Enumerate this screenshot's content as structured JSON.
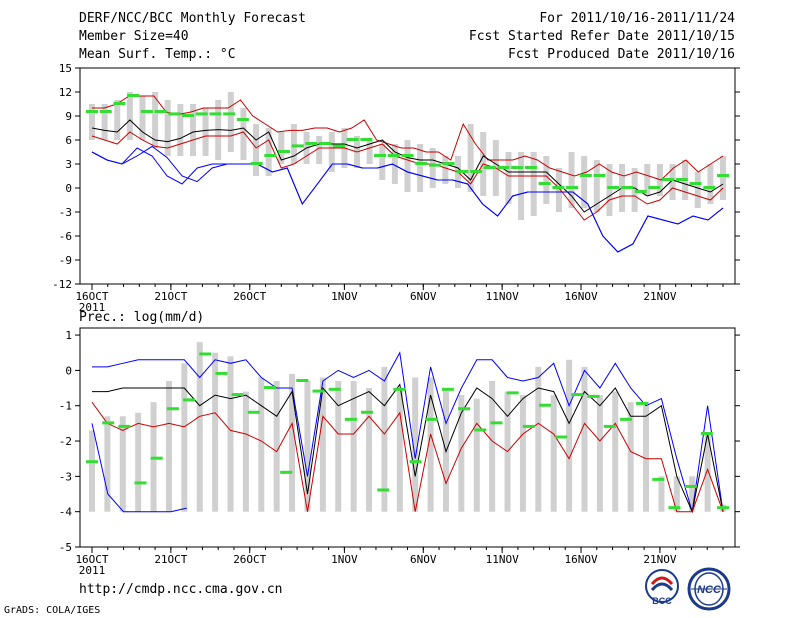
{
  "header": {
    "title": "DERF/NCC/BCC Monthly Forecast",
    "member_size": "Member Size=40",
    "variable": "Mean Surf. Temp.: °C",
    "period": "For 2011/10/16-2011/11/24",
    "refer_date": "Fcst Started Refer Date 2011/10/15",
    "produced_date": "Fcst Produced Date 2011/10/16"
  },
  "footer": {
    "url": "http://cmdp.ncc.cma.gov.cn",
    "credit": "GrADS: COLA/IGES",
    "logo_bcc_text": "BCC",
    "logo_ncc_text": "NCC"
  },
  "colors": {
    "box": "#d0d0d0",
    "ensemble_mean": "#000000",
    "bound_outer": "#0000ff",
    "bound_inner": "#cc0000",
    "observed": "#33dd33"
  },
  "chart_data": [
    {
      "type": "line",
      "title": "Mean Surf. Temp.: °C",
      "xlabel": "",
      "ylabel": "°C",
      "ylim": [
        -12,
        15
      ],
      "yticks": [
        -12,
        -9,
        -6,
        -3,
        0,
        3,
        6,
        9,
        12,
        15
      ],
      "x_tick_labels": [
        "16OCT",
        "21OCT",
        "26OCT",
        "1NOV",
        "6NOV",
        "11NOV",
        "16NOV",
        "21NOV"
      ],
      "x_tick_days": [
        0,
        5,
        10,
        16,
        21,
        26,
        31,
        36
      ],
      "year_label": "2011",
      "days": 40,
      "series": [
        {
          "name": "max",
          "values": [
            4.5,
            3.5,
            3,
            4,
            5.2,
            3.8,
            1.5,
            0.8,
            2.5,
            3,
            3,
            3,
            2,
            2.5,
            -2,
            0.5,
            3,
            3,
            2.5,
            2.5,
            3,
            2,
            1.5,
            1,
            1,
            0.5,
            -2,
            -3.5,
            -1,
            -0.5,
            -0.5,
            -0.5,
            -0.5,
            -2,
            -6,
            -8,
            -7,
            -3.5,
            -4,
            -4.5,
            -3.5,
            -4,
            -2.5
          ]
        },
        {
          "name": "upper",
          "values": [
            10,
            10,
            10.5,
            11.5,
            11.5,
            11.5,
            9.5,
            9.2,
            9.5,
            10,
            10,
            10,
            11,
            9,
            8,
            7,
            7.2,
            7.2,
            7.5,
            7.5,
            7,
            7.5,
            8.5,
            6,
            5.5,
            5,
            5,
            4.5,
            4.5,
            3.5,
            8,
            5.5,
            3.5,
            3.5,
            3.5,
            4,
            3.5,
            2.5,
            2,
            1.5,
            2,
            3,
            2,
            1.5,
            2,
            1.5,
            1,
            2.5,
            3.5,
            2,
            3,
            4
          ]
        },
        {
          "name": "ensemble",
          "values": [
            7.5,
            7.2,
            7,
            8.5,
            7,
            6,
            5.8,
            6.2,
            7,
            7.2,
            7.3,
            7.2,
            7.5,
            6,
            7,
            3.5,
            4,
            5,
            5.5,
            5.5,
            5.5,
            5,
            5.5,
            6,
            4.5,
            3.8,
            3.5,
            3.5,
            3,
            2.5,
            1,
            4,
            3,
            2,
            2,
            2,
            2,
            0.5,
            -1,
            -3,
            -2,
            -1,
            0,
            0,
            -1,
            -0.5,
            1,
            0.5,
            0,
            -0.5,
            0.5
          ]
        },
        {
          "name": "lower",
          "values": [
            6.5,
            6,
            5.5,
            7,
            6,
            5.2,
            5,
            5.5,
            6,
            6.5,
            6.5,
            6.5,
            7,
            5,
            6,
            2.5,
            3,
            4,
            5,
            5,
            5,
            4.5,
            5,
            5.5,
            4,
            3.5,
            3,
            3,
            2.5,
            2,
            0.5,
            3,
            2.5,
            1.5,
            1.5,
            1.5,
            1.5,
            0,
            -2,
            -4,
            -3,
            -1.5,
            -1,
            -1,
            -2,
            -1.5,
            0,
            -0.5,
            -1,
            -1.5,
            0
          ]
        },
        {
          "name": "min",
          "values": [
            4.5,
            3.5,
            3,
            5,
            4,
            1.5,
            0.5,
            2.5,
            3,
            3,
            3,
            3,
            2,
            2.5,
            -2,
            0.5,
            3,
            3,
            2.5,
            2.5,
            3,
            2,
            1.5,
            1,
            1,
            0.5,
            -2,
            -3.5,
            -1,
            -0.5,
            -0.5,
            -0.5,
            -0.5,
            -2,
            -6,
            -8,
            -7,
            -3.5,
            -4,
            -4.5,
            -3.5,
            -4,
            -2.5
          ]
        },
        {
          "name": "observed",
          "values": [
            9.5,
            9.5,
            10.5,
            11.5,
            9.5,
            9.5,
            9.2,
            9,
            9.2,
            9.2,
            9.2,
            8.5,
            3,
            4,
            4.5,
            5.2,
            5.5,
            5.5,
            5.2,
            6,
            6,
            4,
            4,
            4,
            3,
            2.8,
            3,
            2,
            2,
            2.5,
            2.5,
            2.5,
            2.5,
            0.5,
            0,
            0,
            1.5,
            1.5,
            0,
            0,
            -0.5,
            0,
            1,
            1,
            0.5,
            0,
            1.5
          ]
        },
        {
          "name": "box_top",
          "values": [
            10.5,
            10.5,
            11,
            12,
            11.5,
            12,
            11,
            10.5,
            10.5,
            10,
            11,
            12,
            10,
            8,
            7.5,
            7,
            8,
            7,
            6.5,
            7,
            7.5,
            6.5,
            6,
            5.5,
            5.5,
            6,
            5.5,
            5,
            4,
            4,
            8,
            7,
            6,
            4.5,
            4.5,
            4.5,
            4,
            2.5,
            4.5,
            4,
            3.5,
            3,
            3,
            2.5,
            3,
            3,
            3,
            3.5,
            2,
            3,
            4
          ]
        },
        {
          "name": "box_bottom",
          "values": [
            6,
            6,
            6,
            6,
            6,
            5,
            4,
            4,
            4,
            4,
            3.5,
            4.5,
            3.5,
            1.5,
            1.5,
            3,
            3,
            3,
            3,
            2,
            2.5,
            2.5,
            3,
            1,
            0.5,
            -0.5,
            -0.5,
            0,
            0.5,
            0,
            -0.5,
            -1,
            -1,
            -2,
            -4,
            -3.5,
            -2,
            -3,
            -2.5,
            -2.5,
            -3,
            -3.5,
            -3,
            -3,
            -1,
            -1,
            -1.5,
            -1.5,
            -2.5,
            -2,
            -1.5
          ]
        }
      ]
    },
    {
      "type": "line",
      "title": "Prec.: log(mm/d)",
      "xlabel": "",
      "ylabel": "log(mm/d)",
      "ylim": [
        -5,
        1.2
      ],
      "yticks": [
        -5,
        -4,
        -3,
        -2,
        -1,
        0,
        1
      ],
      "x_tick_labels": [
        "16OCT",
        "21OCT",
        "26OCT",
        "1NOV",
        "6NOV",
        "11NOV",
        "16NOV",
        "21NOV"
      ],
      "x_tick_days": [
        0,
        5,
        10,
        16,
        21,
        26,
        31,
        36
      ],
      "year_label": "2011",
      "days": 40,
      "series": [
        {
          "name": "upper",
          "values": [
            0.1,
            0.1,
            0.2,
            0.3,
            0.3,
            0.3,
            0.3,
            -0.2,
            0.3,
            0.2,
            0.3,
            -0.2,
            -0.5,
            -0.5,
            -3,
            -0.3,
            0,
            -0.2,
            0,
            -0.3,
            0.5,
            -2.5,
            0.1,
            -1.5,
            -0.5,
            0.3,
            0.3,
            -0.2,
            -0.3,
            -0.2,
            0.2,
            -1,
            0,
            -0.5,
            0.2,
            -0.5,
            -1,
            -0.8,
            -2.5,
            -4,
            -1,
            -4
          ]
        },
        {
          "name": "ensemble",
          "values": [
            -0.6,
            -0.6,
            -0.5,
            -0.5,
            -0.5,
            -0.5,
            -0.5,
            -1,
            -0.7,
            -0.8,
            -0.7,
            -1,
            -1.3,
            -0.6,
            -3.5,
            -0.5,
            -1,
            -0.8,
            -0.6,
            -1,
            -0.4,
            -3,
            -0.7,
            -2.3,
            -1.2,
            -0.5,
            -0.8,
            -1.3,
            -0.8,
            -0.5,
            -0.6,
            -1.5,
            -0.6,
            -1,
            -0.5,
            -1.3,
            -1.3,
            -1,
            -3,
            -4,
            -1.8,
            -4
          ]
        },
        {
          "name": "lower",
          "values": [
            -0.9,
            -1.5,
            -1.7,
            -1.5,
            -1.6,
            -1.5,
            -1.6,
            -1.3,
            -1.2,
            -1.7,
            -1.8,
            -2,
            -2.3,
            -1.5,
            -4,
            -1.3,
            -1.8,
            -1.8,
            -1.3,
            -1.8,
            -1.2,
            -4,
            -1.8,
            -3.2,
            -2.2,
            -1.5,
            -2,
            -2.3,
            -1.8,
            -1.5,
            -1.8,
            -2.5,
            -1.5,
            -2,
            -1.5,
            -2.3,
            -2.5,
            -2.5,
            -4,
            -4,
            -2.8,
            -4
          ]
        },
        {
          "name": "min",
          "values": [
            -1.5,
            -3.5,
            -4,
            -4,
            -4,
            -4,
            -3.9
          ]
        },
        {
          "name": "observed",
          "values": [
            -2.6,
            -1.5,
            -1.6,
            -3.2,
            -2.5,
            -1.1,
            -0.85,
            0.45,
            -0.1,
            -0.7,
            -1.2,
            -0.5,
            -2.9,
            -0.3,
            -0.6,
            -0.55,
            -1.4,
            -1.2,
            -3.4,
            -0.55,
            -2.6,
            -1.4,
            -0.55,
            -1.1,
            -1.7,
            -1.5,
            -0.65,
            -1.6,
            -1.0,
            -1.9,
            -0.7,
            -0.75,
            -1.6,
            -1.4,
            -0.95,
            -3.1,
            -3.9,
            -3.3,
            -1.8,
            -3.9
          ]
        },
        {
          "name": "box_top",
          "values": [
            -1.7,
            -1.3,
            -1.3,
            -1.2,
            -0.9,
            -0.3,
            0.2,
            0.8,
            0.5,
            0.4,
            -0.6,
            -0.2,
            -0.3,
            -0.1,
            -0.3,
            -0.2,
            -0.3,
            -0.3,
            -0.5,
            0.1,
            -0.5,
            -0.2,
            -0.2,
            -0.5,
            -0.7,
            -0.8,
            -0.3,
            -0.6,
            -0.7,
            0.1,
            -0.7,
            0.3,
            0.1,
            -0.7,
            -0.6,
            -0.9,
            -0.9,
            -3,
            -3,
            -3,
            -1.8,
            -3.8
          ]
        },
        {
          "name": "box_bottom",
          "values": [
            -4,
            -4,
            -4,
            -4,
            -4,
            -4,
            -4,
            -4,
            -4,
            -4,
            -4,
            -4,
            -4,
            -4,
            -4,
            -4,
            -4,
            -4,
            -4,
            -4,
            -4,
            -4,
            -4,
            -4,
            -4,
            -4,
            -4,
            -4,
            -4,
            -4,
            -4,
            -4,
            -4,
            -4,
            -4,
            -4,
            -4,
            -4,
            -4,
            -4,
            -4,
            -4
          ]
        }
      ]
    }
  ]
}
